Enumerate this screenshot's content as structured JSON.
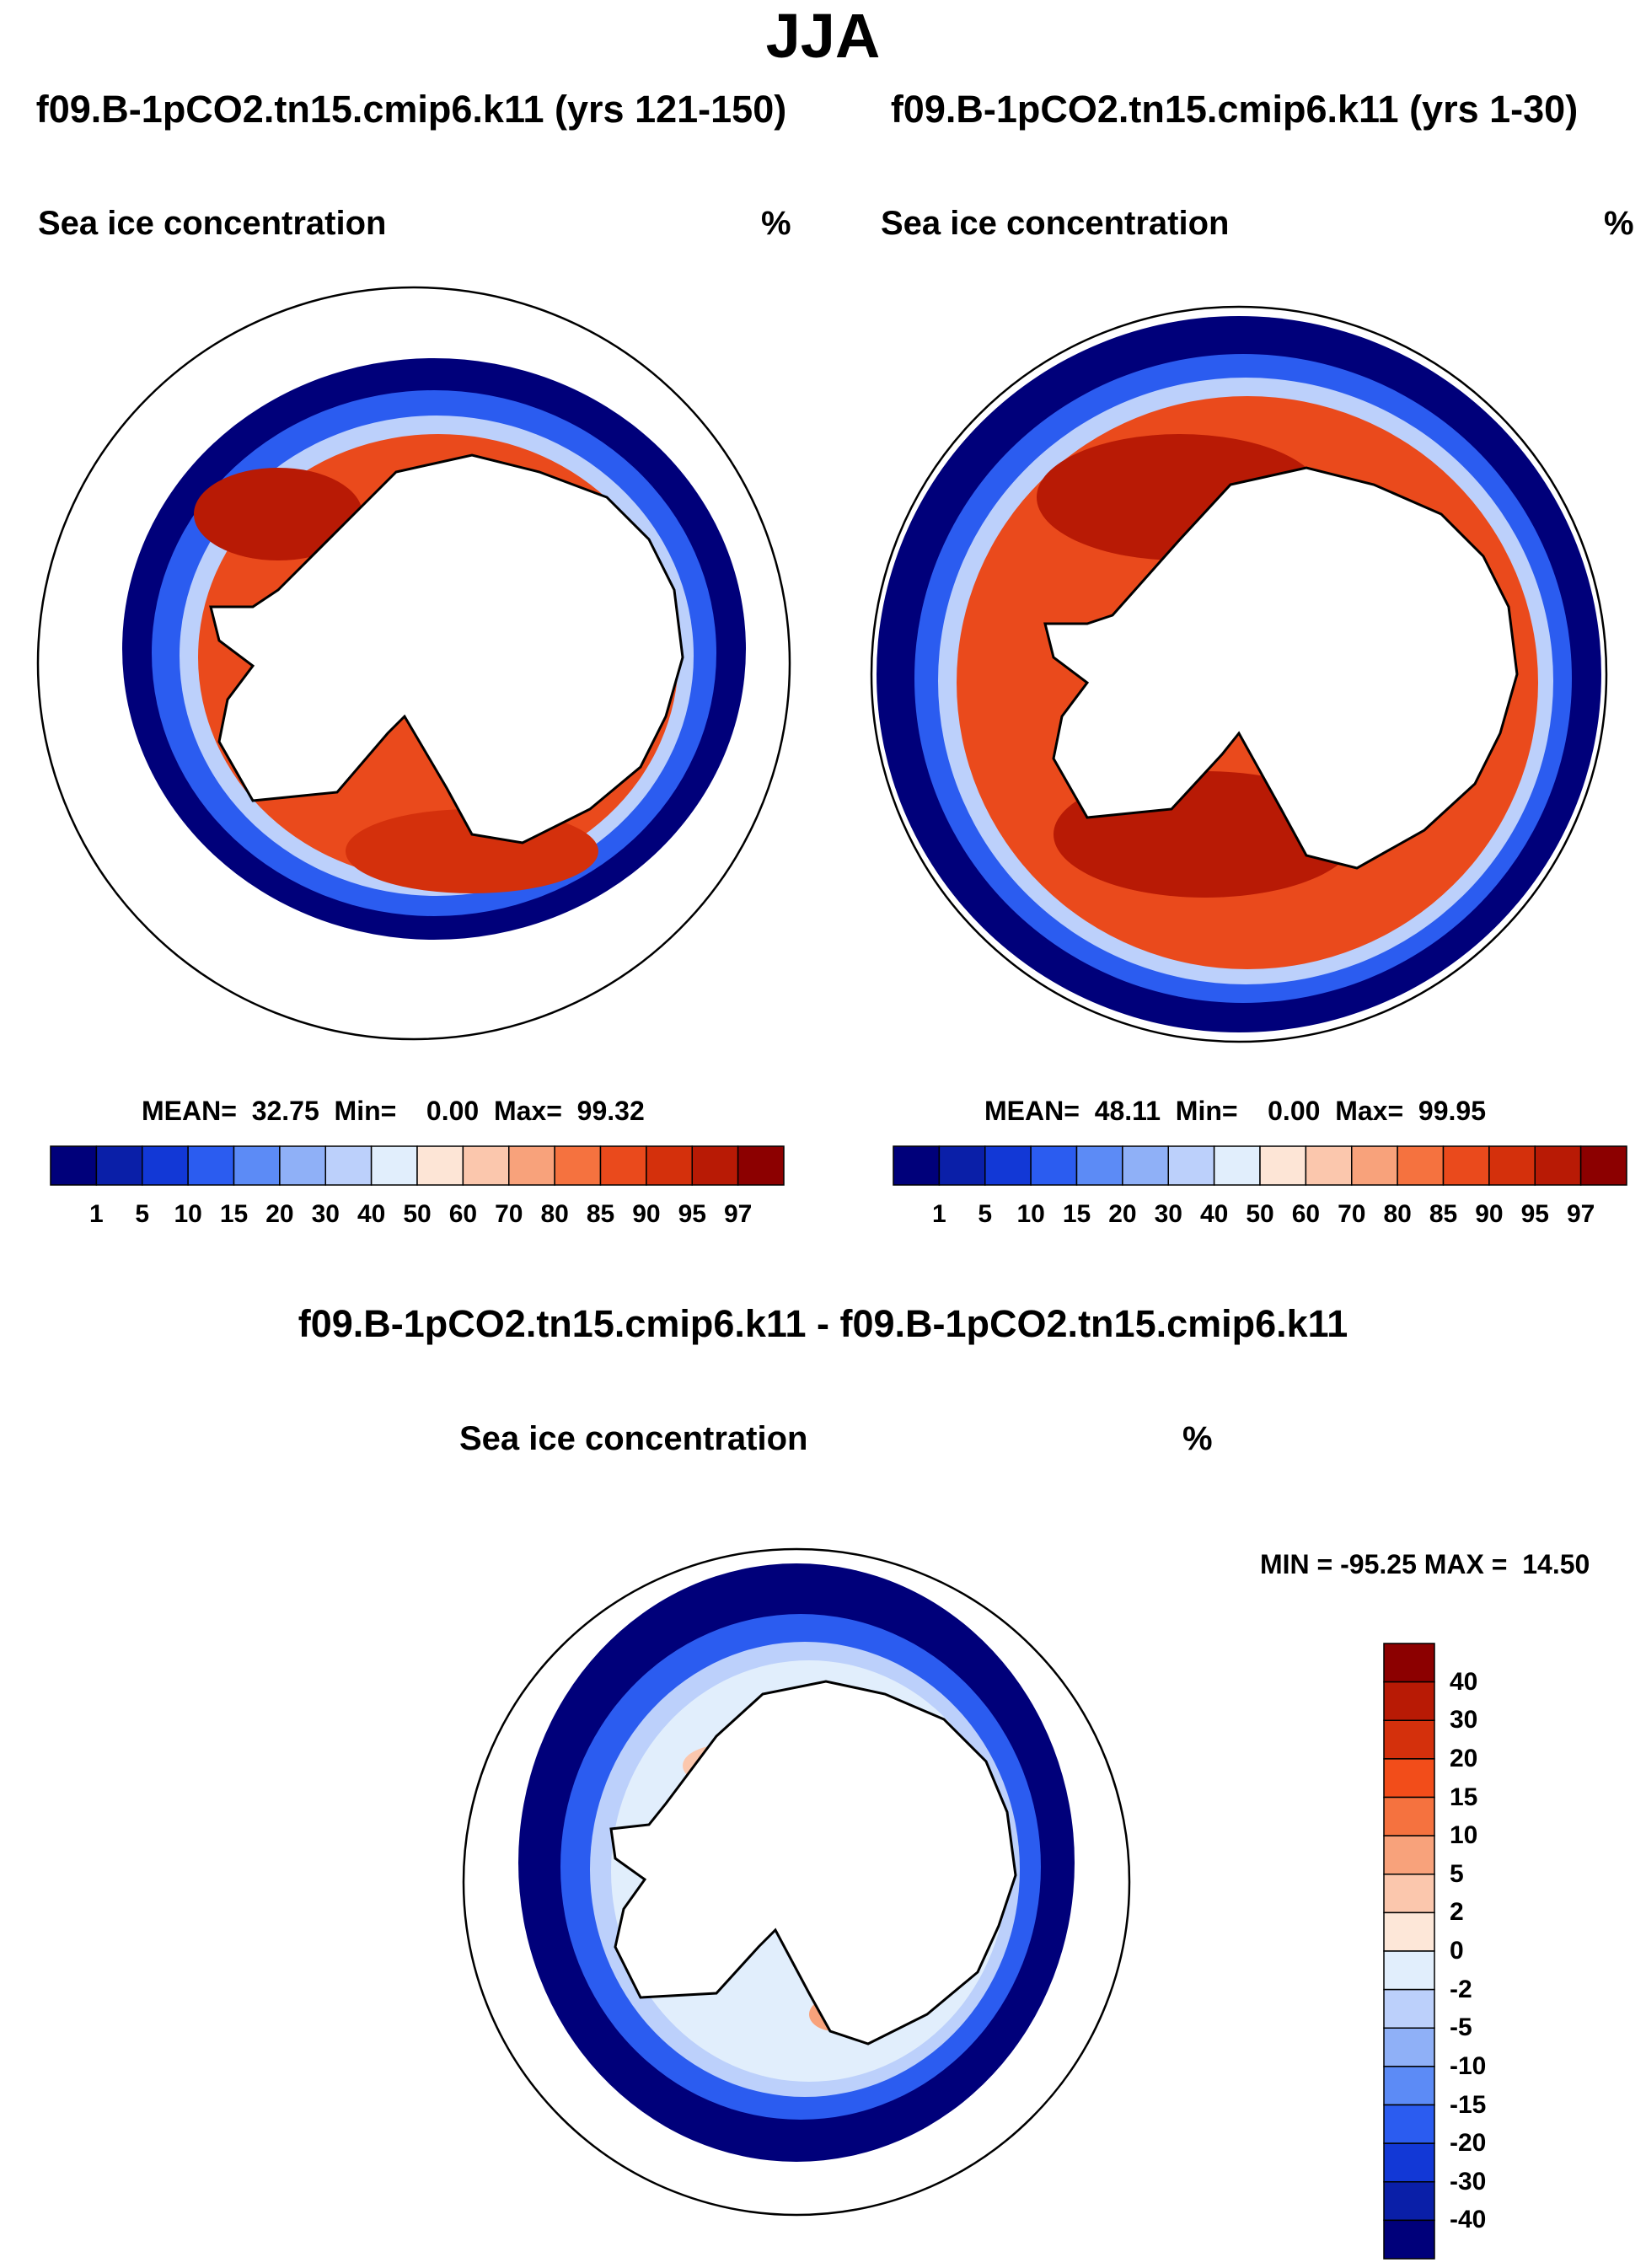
{
  "figure": {
    "season": "JJA",
    "panels": [
      {
        "id": "top-left",
        "case": "f09.B-1pCO2.tn15.cmip6.k11 (yrs 121-150)",
        "variable": "Sea ice concentration",
        "units": "%",
        "stats": "MEAN=  32.75  Min=    0.00  Max=  99.32"
      },
      {
        "id": "top-right",
        "case": "f09.B-1pCO2.tn15.cmip6.k11 (yrs 1-30)",
        "variable": "Sea ice concentration",
        "units": "%",
        "stats": "MEAN=  48.11  Min=    0.00  Max=  99.95"
      }
    ],
    "diff": {
      "title": "f09.B-1pCO2.tn15.cmip6.k11 - f09.B-1pCO2.tn15.cmip6.k11",
      "variable": "Sea ice concentration",
      "units": "%",
      "minmax": "MIN = -95.25 MAX =  14.50"
    },
    "colorbar_ticks": [
      "1",
      "5",
      "10",
      "15",
      "20",
      "30",
      "40",
      "50",
      "60",
      "70",
      "80",
      "85",
      "90",
      "95",
      "97"
    ],
    "colorbar_colors": [
      "#00007a",
      "#0a1fa8",
      "#1238d6",
      "#2b5cf0",
      "#5c8bf6",
      "#8fb0f7",
      "#bcd0fb",
      "#e1eefc",
      "#fde5d6",
      "#fbc7ad",
      "#f8a27b",
      "#f5723f",
      "#ea4a1c",
      "#d4300c",
      "#b81a05",
      "#8c0000"
    ],
    "diff_ticks": [
      "40",
      "30",
      "20",
      "15",
      "10",
      "5",
      "2",
      "0",
      "-2",
      "-5",
      "-10",
      "-15",
      "-20",
      "-30",
      "-40"
    ],
    "diff_colors": [
      "#8c0000",
      "#b81a05",
      "#d4300c",
      "#f24d1a",
      "#f5723f",
      "#f8a27b",
      "#fbc7ad",
      "#fde7d8",
      "#e1eefc",
      "#bcd0fb",
      "#8fb0f7",
      "#5c8bf6",
      "#2b5cf0",
      "#1238d6",
      "#0a1fa8",
      "#00007a"
    ]
  }
}
